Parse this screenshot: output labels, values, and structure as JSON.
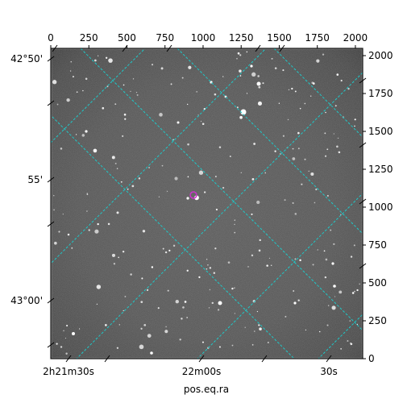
{
  "chart_data": {
    "type": "image",
    "xlabel": "pos.eq.ra",
    "ylabel": "",
    "pixel_axes": {
      "x": {
        "ticks": [
          0,
          250,
          500,
          750,
          1000,
          1250,
          1500,
          1750,
          2000
        ],
        "range": [
          0,
          2048
        ]
      },
      "y": {
        "ticks": [
          0,
          250,
          500,
          750,
          1000,
          1250,
          1500,
          1750,
          2000
        ],
        "range": [
          0,
          2048
        ]
      }
    },
    "world_axes": {
      "ra_tick_labels": [
        "2h21m30s",
        "22m00s",
        "30s"
      ],
      "dec_tick_labels": [
        "42°50'",
        "55'",
        "43°00'"
      ]
    },
    "grid": true,
    "grid_color": "#1fc8c8",
    "marker_color": "#cc33cc",
    "image_colormap": "gray"
  }
}
